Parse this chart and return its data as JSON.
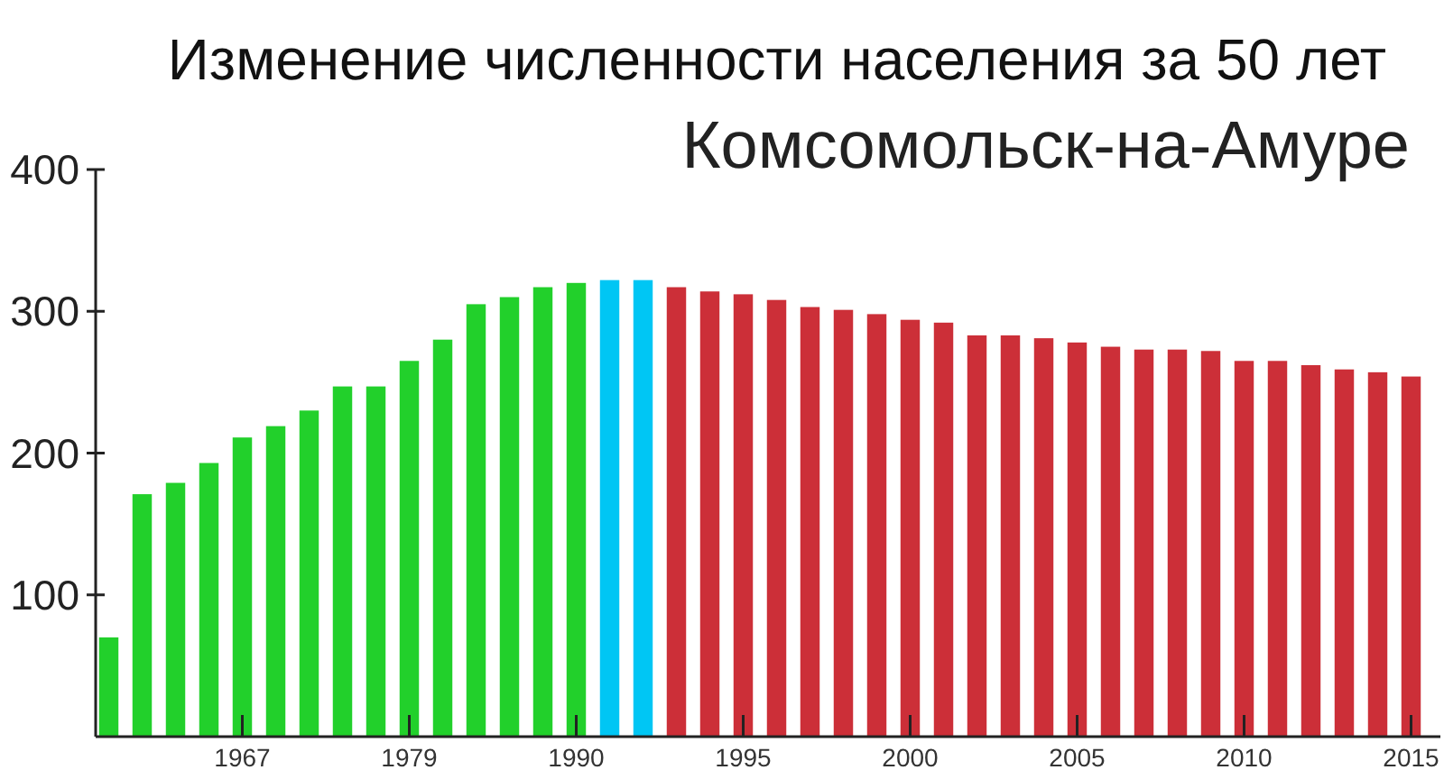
{
  "chart_data": {
    "type": "bar",
    "title": "Изменение численности населения за 50 лет",
    "subtitle": "Комсомольск-на-Амуре",
    "categories": [
      null,
      null,
      null,
      null,
      "1967",
      null,
      null,
      null,
      null,
      "1979",
      null,
      null,
      null,
      null,
      "1990",
      null,
      null,
      null,
      null,
      "1995",
      null,
      null,
      null,
      null,
      "2000",
      null,
      null,
      null,
      null,
      "2005",
      null,
      null,
      null,
      null,
      "2010",
      null,
      null,
      null,
      null,
      "2015"
    ],
    "values": [
      70,
      171,
      179,
      193,
      211,
      219,
      230,
      247,
      247,
      265,
      280,
      305,
      310,
      317,
      320,
      322,
      322,
      317,
      314,
      312,
      308,
      303,
      301,
      298,
      294,
      292,
      283,
      283,
      281,
      278,
      275,
      273,
      273,
      272,
      265,
      265,
      262,
      259,
      257,
      254
    ],
    "colors": [
      "#22d02b",
      "#22d02b",
      "#22d02b",
      "#22d02b",
      "#22d02b",
      "#22d02b",
      "#22d02b",
      "#22d02b",
      "#22d02b",
      "#22d02b",
      "#22d02b",
      "#22d02b",
      "#22d02b",
      "#22d02b",
      "#22d02b",
      "#00c6f4",
      "#00c6f4",
      "#cc2f38",
      "#cc2f38",
      "#cc2f38",
      "#cc2f38",
      "#cc2f38",
      "#cc2f38",
      "#cc2f38",
      "#cc2f38",
      "#cc2f38",
      "#cc2f38",
      "#cc2f38",
      "#cc2f38",
      "#cc2f38",
      "#cc2f38",
      "#cc2f38",
      "#cc2f38",
      "#cc2f38",
      "#cc2f38",
      "#cc2f38",
      "#cc2f38",
      "#cc2f38",
      "#cc2f38",
      "#cc2f38"
    ],
    "ylim": [
      0,
      400
    ],
    "yticks": [
      100,
      200,
      300,
      400
    ]
  }
}
